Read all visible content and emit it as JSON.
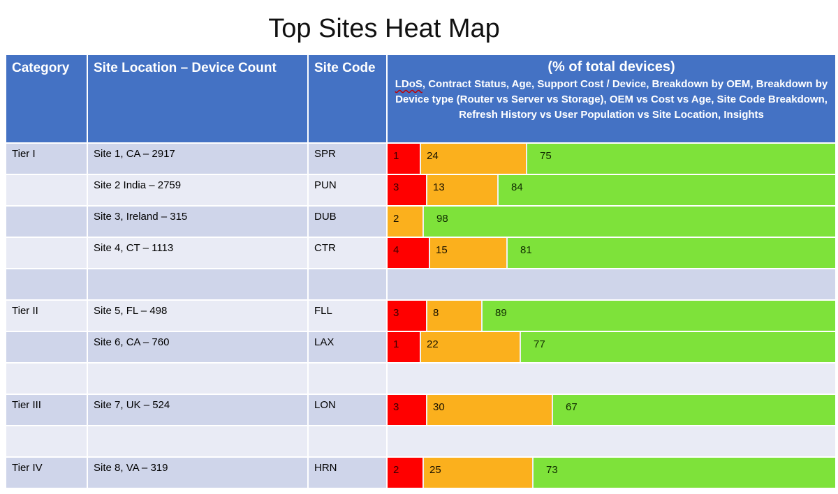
{
  "title": "Top Sites Heat Map",
  "headers": {
    "category": "Category",
    "site_location": "Site Location – Device Count",
    "site_code": "Site Code",
    "pct_title": "(% of total devices)",
    "pct_sub_first_word": "LDoS",
    "pct_sub_rest": ", Contract Status, Age, Support Cost / Device, Breakdown by OEM, Breakdown by Device type (Router vs Server vs Storage), OEM vs Cost vs Age, Site Code Breakdown, Refresh History vs User Population vs Site Location, Insights"
  },
  "colors": {
    "red": "#ff0000",
    "orange": "#fbb01d",
    "green": "#7ee23a",
    "header": "#4472c4"
  },
  "chart_data": {
    "type": "table",
    "title": "Top Sites Heat Map",
    "columns": [
      "Category",
      "Site Location – Device Count",
      "Site Code",
      "(% of total devices)"
    ],
    "rows": [
      {
        "category": "Tier I",
        "site": "Site 1, CA – 2917",
        "code": "SPR",
        "red": 1,
        "orange": 24,
        "green": 75
      },
      {
        "category": "",
        "site": "Site 2 India – 2759",
        "code": "PUN",
        "red": 3,
        "orange": 13,
        "green": 84
      },
      {
        "category": "",
        "site": "Site 3, Ireland – 315",
        "code": "DUB",
        "red": null,
        "orange": 2,
        "green": 98
      },
      {
        "category": "",
        "site": "Site 4, CT – 1113",
        "code": "CTR",
        "red": 4,
        "orange": 15,
        "green": 81
      },
      {
        "gap": true
      },
      {
        "category": "Tier II",
        "site": "Site 5, FL – 498",
        "code": "FLL",
        "red": 3,
        "orange": 8,
        "green": 89
      },
      {
        "category": "",
        "site": "Site 6, CA – 760",
        "code": "LAX",
        "red": 1,
        "orange": 22,
        "green": 77
      },
      {
        "gap": true
      },
      {
        "category": "Tier III",
        "site": "Site 7, UK – 524",
        "code": "LON",
        "red": 3,
        "orange": 30,
        "green": 67
      },
      {
        "gap": true
      },
      {
        "category": "Tier IV",
        "site": "Site 8, VA – 319",
        "code": "HRN",
        "red": 2,
        "orange": 25,
        "green": 73
      }
    ]
  }
}
